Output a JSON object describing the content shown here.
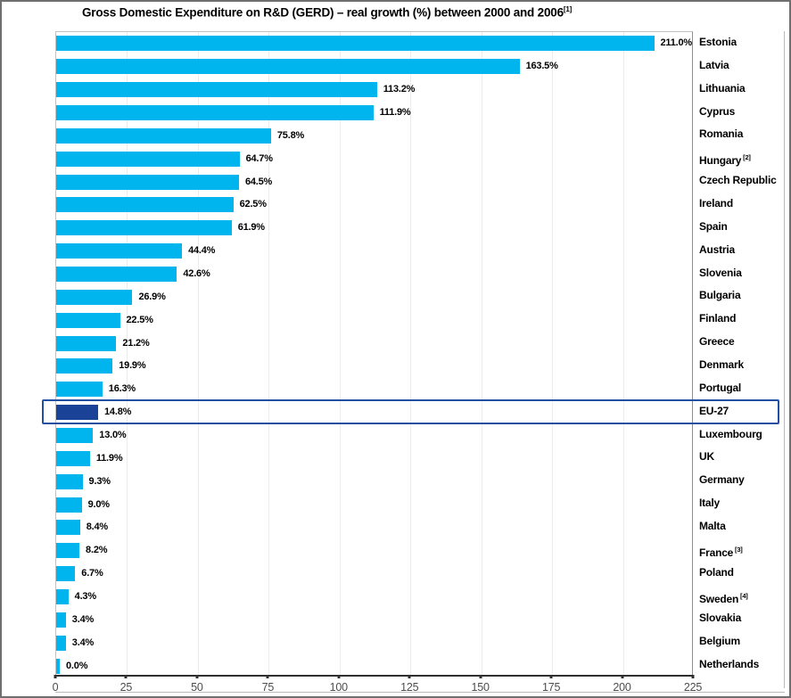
{
  "title": {
    "text": "Gross Domestic Expenditure on R&D (GERD) – real growth (%) between 2000 and 2006",
    "sup": "[1]"
  },
  "colors": {
    "bar": "#00b4ee",
    "highlight_bar": "#1a4297",
    "highlight_box_border": "#2150a3",
    "gridline": "#ececec",
    "axis_line": "#2f2f2f",
    "tick_label": "#4d4d4d"
  },
  "chart_data": {
    "type": "bar",
    "orientation": "horizontal",
    "title": "Gross Domestic Expenditure on R&D (GERD) – real growth (%) between 2000 and 2006 [1]",
    "xlabel": "",
    "ylabel": "",
    "xlim": [
      0,
      225
    ],
    "x_ticks": [
      0,
      25,
      50,
      75,
      100,
      125,
      150,
      175,
      200,
      225
    ],
    "grid": true,
    "value_labels_shown": true,
    "highlighted_category": "EU-27",
    "rows": [
      {
        "label": "Estonia",
        "sup": "",
        "value": 211.0,
        "display": "211.0%",
        "highlight": false
      },
      {
        "label": "Latvia",
        "sup": "",
        "value": 163.5,
        "display": "163.5%",
        "highlight": false
      },
      {
        "label": "Lithuania",
        "sup": "",
        "value": 113.2,
        "display": "113.2%",
        "highlight": false
      },
      {
        "label": "Cyprus",
        "sup": "",
        "value": 111.9,
        "display": "111.9%",
        "highlight": false
      },
      {
        "label": "Romania",
        "sup": "",
        "value": 75.8,
        "display": "75.8%",
        "highlight": false
      },
      {
        "label": "Hungary",
        "sup": "[2]",
        "value": 64.7,
        "display": "64.7%",
        "highlight": false
      },
      {
        "label": "Czech Republic",
        "sup": "",
        "value": 64.5,
        "display": "64.5%",
        "highlight": false
      },
      {
        "label": "Ireland",
        "sup": "",
        "value": 62.5,
        "display": "62.5%",
        "highlight": false
      },
      {
        "label": "Spain",
        "sup": "",
        "value": 61.9,
        "display": "61.9%",
        "highlight": false
      },
      {
        "label": "Austria",
        "sup": "",
        "value": 44.4,
        "display": "44.4%",
        "highlight": false
      },
      {
        "label": "Slovenia",
        "sup": "",
        "value": 42.6,
        "display": "42.6%",
        "highlight": false
      },
      {
        "label": "Bulgaria",
        "sup": "",
        "value": 26.9,
        "display": "26.9%",
        "highlight": false
      },
      {
        "label": "Finland",
        "sup": "",
        "value": 22.5,
        "display": "22.5%",
        "highlight": false
      },
      {
        "label": "Greece",
        "sup": "",
        "value": 21.2,
        "display": "21.2%",
        "highlight": false
      },
      {
        "label": "Denmark",
        "sup": "",
        "value": 19.9,
        "display": "19.9%",
        "highlight": false
      },
      {
        "label": "Portugal",
        "sup": "",
        "value": 16.3,
        "display": "16.3%",
        "highlight": false
      },
      {
        "label": "EU-27",
        "sup": "",
        "value": 14.8,
        "display": "14.8%",
        "highlight": true
      },
      {
        "label": "Luxembourg",
        "sup": "",
        "value": 13.0,
        "display": "13.0%",
        "highlight": false
      },
      {
        "label": "UK",
        "sup": "",
        "value": 11.9,
        "display": "11.9%",
        "highlight": false
      },
      {
        "label": "Germany",
        "sup": "",
        "value": 9.3,
        "display": "9.3%",
        "highlight": false
      },
      {
        "label": "Italy",
        "sup": "",
        "value": 9.0,
        "display": "9.0%",
        "highlight": false
      },
      {
        "label": "Malta",
        "sup": "",
        "value": 8.4,
        "display": "8.4%",
        "highlight": false
      },
      {
        "label": "France",
        "sup": "[3]",
        "value": 8.2,
        "display": "8.2%",
        "highlight": false
      },
      {
        "label": "Poland",
        "sup": "",
        "value": 6.7,
        "display": "6.7%",
        "highlight": false
      },
      {
        "label": "Sweden",
        "sup": "[4]",
        "value": 4.3,
        "display": "4.3%",
        "highlight": false
      },
      {
        "label": "Slovakia",
        "sup": "",
        "value": 3.4,
        "display": "3.4%",
        "highlight": false
      },
      {
        "label": "Belgium",
        "sup": "",
        "value": 3.4,
        "display": "3.4%",
        "highlight": false
      },
      {
        "label": "Netherlands",
        "sup": "",
        "value": 0.0,
        "display": "0.0%",
        "highlight": false
      }
    ]
  }
}
